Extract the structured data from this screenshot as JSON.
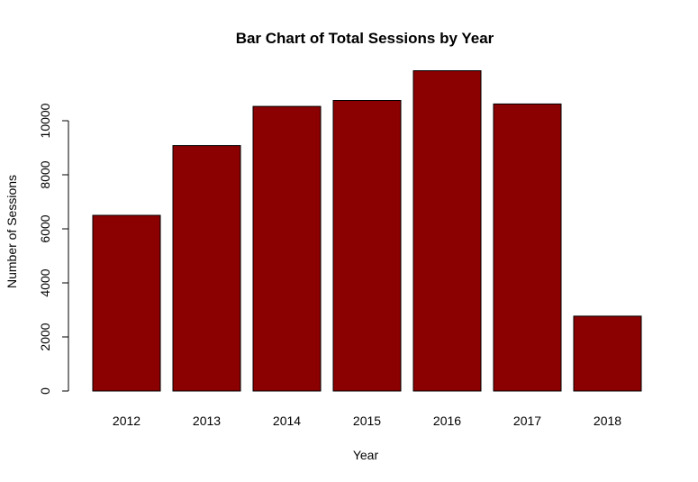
{
  "chart_data": {
    "type": "bar",
    "title": "Bar Chart of Total Sessions by Year",
    "xlabel": "Year",
    "ylabel": "Number of Sessions",
    "categories": [
      "2012",
      "2013",
      "2014",
      "2015",
      "2016",
      "2017",
      "2018"
    ],
    "values": [
      6500,
      9080,
      10530,
      10750,
      11850,
      10620,
      2770
    ],
    "ylim": [
      0,
      12000
    ],
    "yticks": [
      0,
      2000,
      4000,
      6000,
      8000,
      10000
    ],
    "ytick_labels": [
      "0",
      "2000",
      "4000",
      "6000",
      "8000",
      "10000"
    ],
    "grid": false,
    "legend": "none",
    "bar_color": "#8b0000",
    "bar_border": "#000000"
  }
}
